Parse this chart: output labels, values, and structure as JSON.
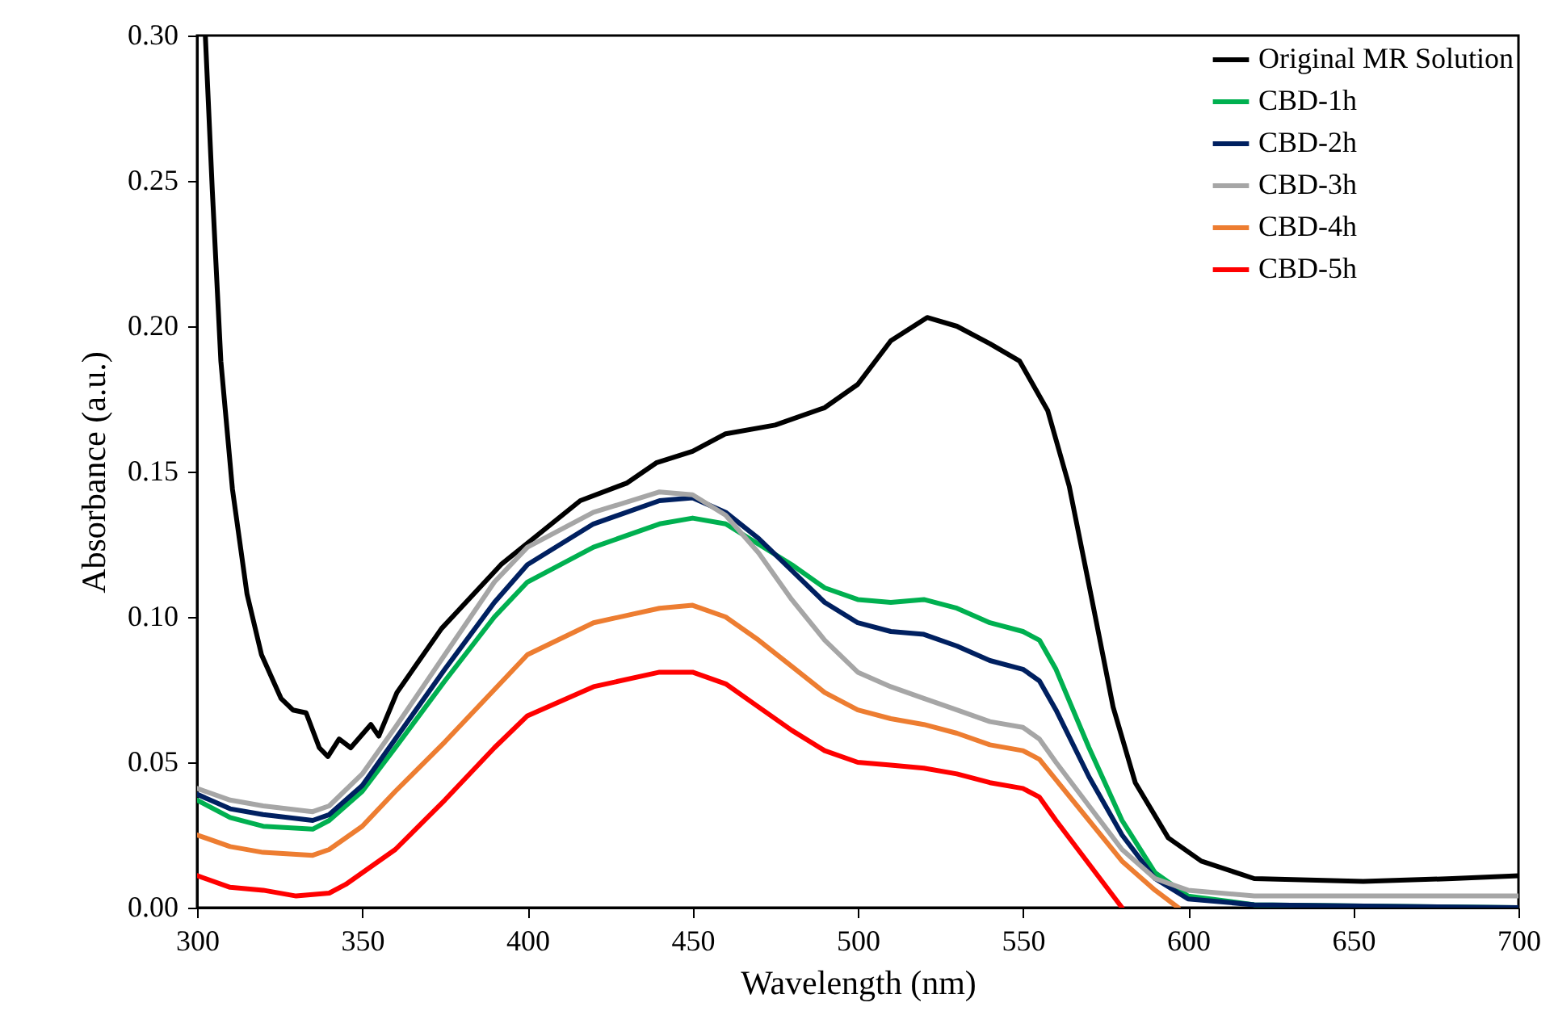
{
  "chart_data": {
    "type": "line",
    "xlabel": "Wavelength (nm)",
    "ylabel": "Absorbance (a.u.)",
    "xlim": [
      300,
      700
    ],
    "ylim": [
      0,
      0.3
    ],
    "xticks": [
      300,
      350,
      400,
      450,
      500,
      550,
      600,
      650,
      700
    ],
    "yticks": [
      {
        "value": 0,
        "label": "0.00"
      },
      {
        "value": 0.05,
        "label": "0.05"
      },
      {
        "value": 0.1,
        "label": "0.10"
      },
      {
        "value": 0.15,
        "label": "0.15"
      },
      {
        "value": 0.2,
        "label": "0.20"
      },
      {
        "value": 0.25,
        "label": "0.25"
      },
      {
        "value": 0.3,
        "label": "0.30"
      }
    ],
    "grid": false,
    "legend": "top right",
    "marker": "none",
    "line_style": "solid",
    "series": [
      {
        "name": "Original MR Solution",
        "color": "#000000",
        "x": [
          302.5,
          304.6,
          307.2,
          310.7,
          315.1,
          319.5,
          325.4,
          329,
          333,
          337,
          339.6,
          343,
          346.5,
          352.6,
          355,
          360.5,
          374,
          392,
          416,
          430,
          439,
          450,
          460,
          475,
          490,
          500,
          510,
          521,
          530,
          540,
          549,
          557.5,
          564,
          570.7,
          577.3,
          584,
          594,
          604,
          620,
          653,
          680,
          700
        ],
        "values": [
          0.3,
          0.247,
          0.188,
          0.144,
          0.108,
          0.087,
          0.072,
          0.068,
          0.067,
          0.055,
          0.052,
          0.058,
          0.055,
          0.063,
          0.059,
          0.074,
          0.096,
          0.118,
          0.14,
          0.146,
          0.153,
          0.157,
          0.163,
          0.166,
          0.172,
          0.18,
          0.195,
          0.203,
          0.2,
          0.194,
          0.188,
          0.171,
          0.145,
          0.107,
          0.069,
          0.043,
          0.024,
          0.016,
          0.01,
          0.009,
          0.01,
          0.011
        ]
      },
      {
        "name": "CBD-1h",
        "color": "#00b050",
        "x": [
          300,
          310,
          320,
          335,
          340,
          350,
          360,
          375,
          390,
          400,
          420,
          440,
          450,
          460,
          470,
          480,
          490,
          500,
          510,
          520,
          530,
          540,
          550,
          555,
          560,
          570,
          580,
          590,
          600,
          620,
          700
        ],
        "values": [
          0.037,
          0.031,
          0.028,
          0.027,
          0.03,
          0.04,
          0.055,
          0.078,
          0.1,
          0.112,
          0.124,
          0.132,
          0.134,
          0.132,
          0.125,
          0.118,
          0.11,
          0.106,
          0.105,
          0.106,
          0.103,
          0.098,
          0.095,
          0.092,
          0.082,
          0.055,
          0.03,
          0.012,
          0.004,
          0.001,
          0
        ]
      },
      {
        "name": "CBD-2h",
        "color": "#002060",
        "x": [
          300,
          310,
          320,
          335,
          340,
          350,
          360,
          375,
          390,
          400,
          420,
          440,
          450,
          460,
          470,
          480,
          490,
          500,
          510,
          520,
          530,
          540,
          550,
          555,
          560,
          570,
          580,
          590,
          600,
          620,
          700
        ],
        "values": [
          0.039,
          0.034,
          0.032,
          0.03,
          0.032,
          0.042,
          0.058,
          0.082,
          0.105,
          0.118,
          0.132,
          0.14,
          0.141,
          0.136,
          0.127,
          0.116,
          0.105,
          0.098,
          0.095,
          0.094,
          0.09,
          0.085,
          0.082,
          0.078,
          0.068,
          0.045,
          0.025,
          0.01,
          0.003,
          0.001,
          0
        ]
      },
      {
        "name": "CBD-3h",
        "color": "#a6a6a6",
        "x": [
          300,
          310,
          320,
          335,
          340,
          350,
          360,
          375,
          390,
          400,
          420,
          440,
          450,
          460,
          470,
          480,
          490,
          500,
          510,
          520,
          530,
          540,
          550,
          555,
          560,
          570,
          580,
          590,
          600,
          620,
          700
        ],
        "values": [
          0.041,
          0.037,
          0.035,
          0.033,
          0.035,
          0.046,
          0.062,
          0.087,
          0.112,
          0.124,
          0.136,
          0.143,
          0.142,
          0.135,
          0.122,
          0.106,
          0.092,
          0.081,
          0.076,
          0.072,
          0.068,
          0.064,
          0.062,
          0.058,
          0.05,
          0.035,
          0.02,
          0.01,
          0.006,
          0.004,
          0.004
        ]
      },
      {
        "name": "CBD-4h",
        "color": "#ed7d31",
        "x": [
          300,
          310,
          320,
          335,
          340,
          350,
          360,
          375,
          390,
          400,
          420,
          440,
          450,
          460,
          470,
          480,
          490,
          500,
          510,
          520,
          530,
          540,
          550,
          555,
          560,
          570,
          580,
          590,
          597
        ],
        "values": [
          0.025,
          0.021,
          0.019,
          0.018,
          0.02,
          0.028,
          0.04,
          0.057,
          0.075,
          0.087,
          0.098,
          0.103,
          0.104,
          0.1,
          0.092,
          0.083,
          0.074,
          0.068,
          0.065,
          0.063,
          0.06,
          0.056,
          0.054,
          0.051,
          0.044,
          0.03,
          0.016,
          0.006,
          0
        ]
      },
      {
        "name": "CBD-5h",
        "color": "#ff0000",
        "x": [
          300,
          310,
          320,
          330,
          340,
          345,
          360,
          375,
          390,
          400,
          420,
          440,
          450,
          460,
          470,
          480,
          490,
          500,
          510,
          520,
          530,
          540,
          550,
          555,
          560,
          570,
          578,
          580
        ],
        "values": [
          0.011,
          0.007,
          0.006,
          0.004,
          0.005,
          0.008,
          0.02,
          0.037,
          0.055,
          0.066,
          0.076,
          0.081,
          0.081,
          0.077,
          0.069,
          0.061,
          0.054,
          0.05,
          0.049,
          0.048,
          0.046,
          0.043,
          0.041,
          0.038,
          0.03,
          0.015,
          0.003,
          0
        ]
      }
    ]
  }
}
